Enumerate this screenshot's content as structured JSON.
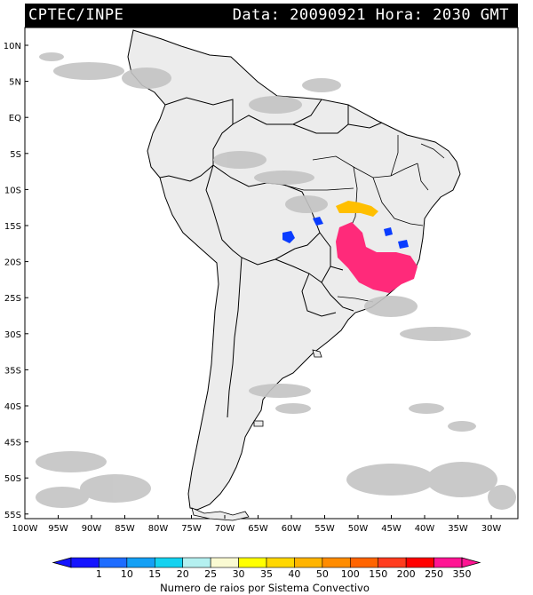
{
  "header": {
    "source": "CPTEC/INPE",
    "date_time": "Data: 20090921 Hora: 2030 GMT"
  },
  "map": {
    "lat_labels": [
      "10N",
      "5N",
      "EQ",
      "5S",
      "10S",
      "15S",
      "20S",
      "25S",
      "30S",
      "35S",
      "40S",
      "45S",
      "50S",
      "55S"
    ],
    "lon_labels": [
      "100W",
      "95W",
      "90W",
      "85W",
      "80W",
      "75W",
      "70W",
      "65W",
      "60W",
      "55W",
      "50W",
      "45W",
      "40W",
      "35W",
      "30W"
    ],
    "colors": {
      "cloud": "#c4c4c4",
      "land": "#ececec",
      "ocean": "#ffffff",
      "border": "#000000"
    },
    "lightning_clusters": [
      {
        "region": "central-brazil",
        "class": "50",
        "color": "#ffbf00"
      },
      {
        "region": "southeast-brazil",
        "class": "350",
        "color": "#ff2a7a"
      },
      {
        "region": "bolivia",
        "class": "10",
        "color": "#0a3cff"
      },
      {
        "region": "bahia",
        "class": "10",
        "color": "#0a3cff"
      }
    ]
  },
  "legend": {
    "ticks": [
      "1",
      "10",
      "15",
      "20",
      "25",
      "30",
      "35",
      "40",
      "50",
      "100",
      "150",
      "200",
      "250",
      "350"
    ],
    "colors": [
      "#1414ff",
      "#1e6cff",
      "#14a0f5",
      "#14d2f0",
      "#b4f0f0",
      "#fafad2",
      "#ffff00",
      "#ffd700",
      "#ffb400",
      "#ff8c00",
      "#ff6400",
      "#ff3c1e",
      "#ff0000",
      "#ff1493"
    ],
    "caption": "Numero de raios por Sistema Convectivo"
  }
}
